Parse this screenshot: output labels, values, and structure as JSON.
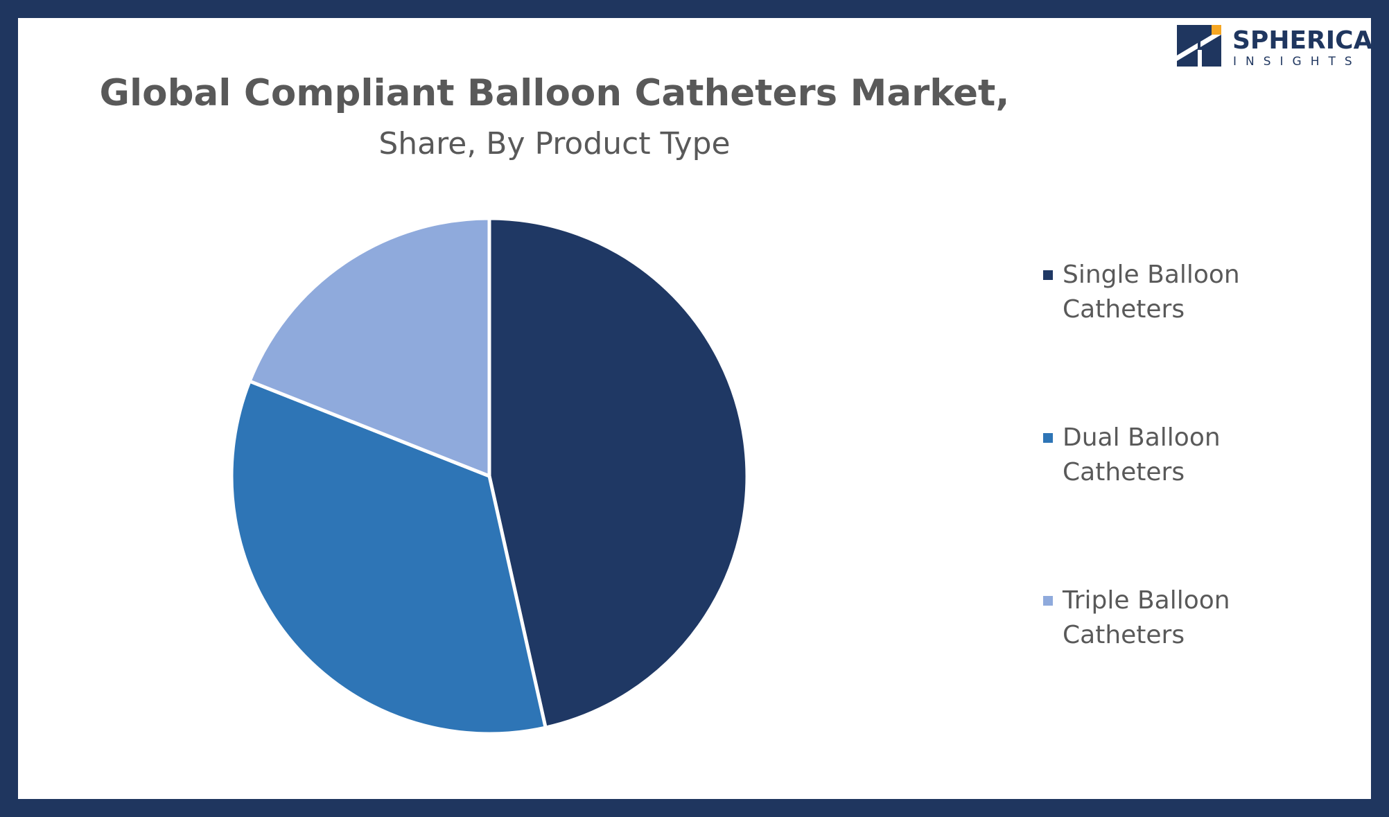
{
  "chart_data": {
    "type": "pie",
    "title": "Global Compliant Balloon Catheters Market,",
    "subtitle": "Share, By Product Type",
    "categories": [
      "Single Balloon Catheters",
      "Dual Balloon Catheters",
      "Triple Balloon Catheters"
    ],
    "values": [
      46.5,
      34.5,
      19.0
    ],
    "colors": [
      "#1f3864",
      "#2e75b6",
      "#8faadc"
    ],
    "legend_position": "right"
  },
  "brand": {
    "name": "SPHERICAL",
    "tagline": "INSIGHTS",
    "primary_color": "#1f365f",
    "accent_color": "#f5a623",
    "logo_icon": "spherical-insights-logo-icon"
  },
  "frame_color": "#1f365f"
}
